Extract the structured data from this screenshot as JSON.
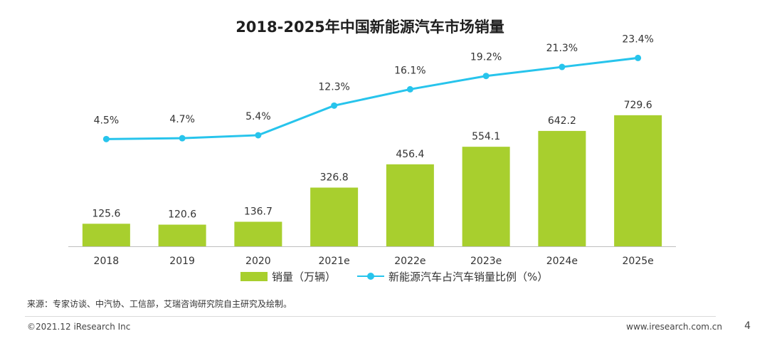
{
  "title": "2018-2025年中国新能源汽车市场销量",
  "chart_data": {
    "type": "bar",
    "categories": [
      "2018",
      "2019",
      "2020",
      "2021e",
      "2022e",
      "2023e",
      "2024e",
      "2025e"
    ],
    "series": [
      {
        "name": "销量（万辆）",
        "type": "bar",
        "color": "#a8cf2e",
        "values": [
          125.6,
          120.6,
          136.7,
          326.8,
          456.4,
          554.1,
          642.2,
          729.6
        ],
        "labels": [
          "125.6",
          "120.6",
          "136.7",
          "326.8",
          "456.4",
          "554.1",
          "642.2",
          "729.6"
        ]
      },
      {
        "name": "新能源汽车占汽车销量比例（%）",
        "type": "line",
        "color": "#27c4ec",
        "values": [
          4.5,
          4.7,
          5.4,
          12.3,
          16.1,
          19.2,
          21.3,
          23.4
        ],
        "labels": [
          "4.5%",
          "4.7%",
          "5.4%",
          "12.3%",
          "16.1%",
          "19.2%",
          "21.3%",
          "23.4%"
        ]
      }
    ],
    "grid": false,
    "legend_position": "bottom"
  },
  "legend": {
    "bar_label": "销量（万辆）",
    "line_label": "新能源汽车占汽车销量比例（%）"
  },
  "source": "来源：专家访谈、中汽协、工信部，艾瑞咨询研究院自主研究及绘制。",
  "footer": {
    "copyright": "©2021.12 iResearch Inc",
    "website": "www.iresearch.com.cn",
    "page": "4"
  }
}
